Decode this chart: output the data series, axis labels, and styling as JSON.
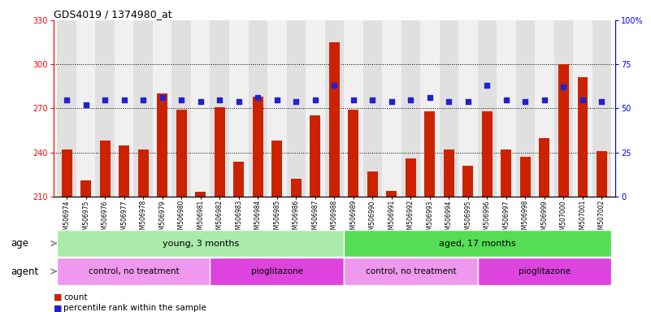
{
  "title": "GDS4019 / 1374980_at",
  "samples": [
    "GSM506974",
    "GSM506975",
    "GSM506976",
    "GSM506977",
    "GSM506978",
    "GSM506979",
    "GSM506980",
    "GSM506981",
    "GSM506982",
    "GSM506983",
    "GSM506984",
    "GSM506985",
    "GSM506986",
    "GSM506987",
    "GSM506988",
    "GSM506989",
    "GSM506990",
    "GSM506991",
    "GSM506992",
    "GSM506993",
    "GSM506994",
    "GSM506995",
    "GSM506996",
    "GSM506997",
    "GSM506998",
    "GSM506999",
    "GSM507000",
    "GSM507001",
    "GSM507002"
  ],
  "counts": [
    242,
    221,
    248,
    245,
    242,
    280,
    269,
    213,
    271,
    234,
    278,
    248,
    222,
    265,
    315,
    269,
    227,
    214,
    236,
    268,
    242,
    231,
    268,
    242,
    237,
    250,
    300,
    291,
    241
  ],
  "percentile_ranks": [
    55,
    52,
    55,
    55,
    55,
    56,
    55,
    54,
    55,
    54,
    56,
    55,
    54,
    55,
    63,
    55,
    55,
    54,
    55,
    56,
    54,
    54,
    63,
    55,
    54,
    55,
    62,
    55,
    54
  ],
  "ylim_left": [
    210,
    330
  ],
  "ylim_right": [
    0,
    100
  ],
  "yticks_left": [
    210,
    240,
    270,
    300,
    330
  ],
  "yticks_right": [
    0,
    25,
    50,
    75,
    100
  ],
  "bar_color": "#cc2200",
  "dot_color": "#2222cc",
  "age_groups": [
    {
      "label": "young, 3 months",
      "start": 0,
      "end": 15,
      "color": "#aaeaaa"
    },
    {
      "label": "aged, 17 months",
      "start": 15,
      "end": 29,
      "color": "#55dd55"
    }
  ],
  "agent_groups": [
    {
      "label": "control, no treatment",
      "start": 0,
      "end": 8,
      "color": "#ee99ee"
    },
    {
      "label": "pioglitazone",
      "start": 8,
      "end": 15,
      "color": "#dd44dd"
    },
    {
      "label": "control, no treatment",
      "start": 15,
      "end": 22,
      "color": "#ee99ee"
    },
    {
      "label": "pioglitazone",
      "start": 22,
      "end": 29,
      "color": "#dd44dd"
    }
  ],
  "legend_count_label": "count",
  "legend_pct_label": "percentile rank within the sample",
  "col_bg_even": "#e0e0e0",
  "col_bg_odd": "#f0f0f0",
  "grid_dotted_lines": [
    240,
    270,
    300
  ]
}
